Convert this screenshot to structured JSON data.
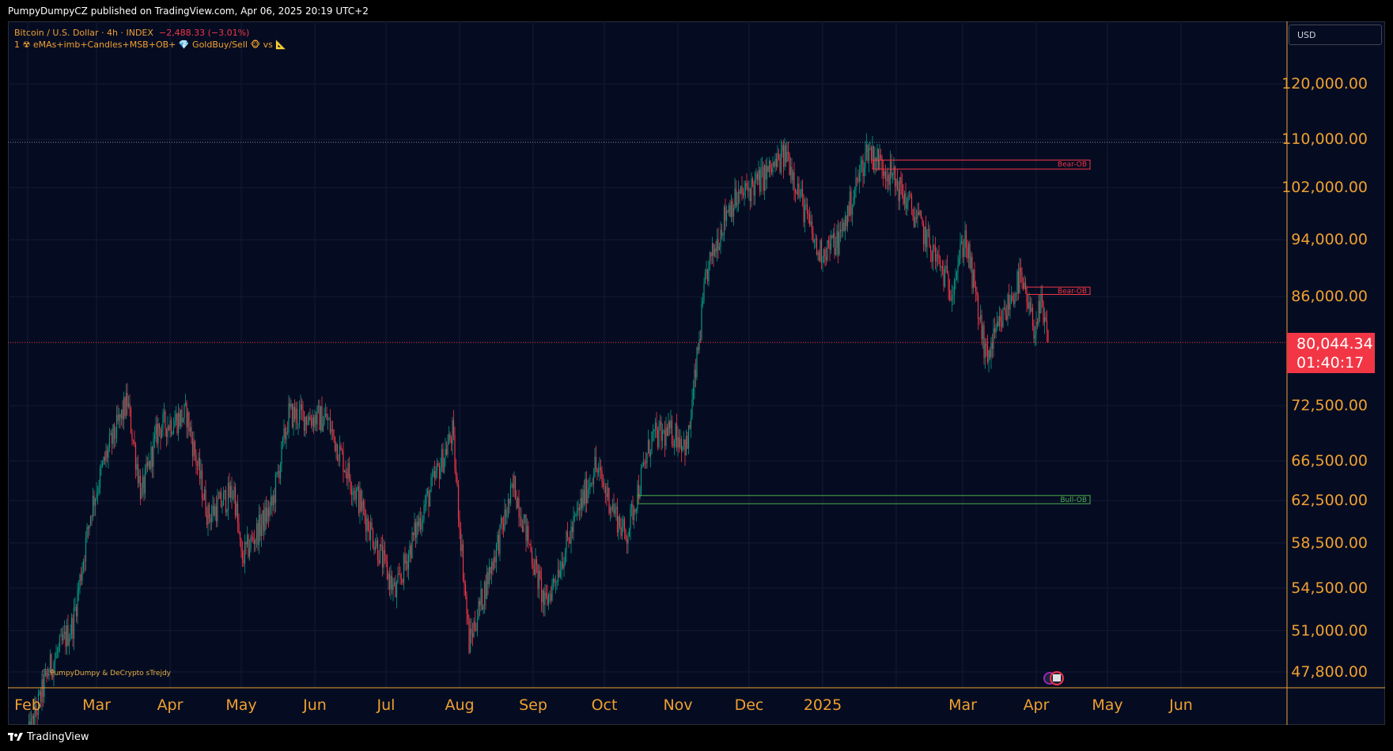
{
  "header": {
    "publish_text": "PumpyDumpyCZ published on TradingView.com, Apr 06, 2025 20:19 UTC+2"
  },
  "legend": {
    "symbol": "Bitcoin / U.S. Dollar · 4h · INDEX",
    "change": "−2,488.33 (−3.01%)",
    "indicator": "1 ☢ eMAs+imb+Candles+MSB+OB+ 💎 GoldBuy/Sell 🐵 vs 📐"
  },
  "currency_button": "USD",
  "price_axis": {
    "labels": [
      "120,000.00",
      "110,000.00",
      "102,000.00",
      "94,000.00",
      "86,000.00",
      "72,500.00",
      "66,500.00",
      "62,500.00",
      "58,500.00",
      "54,500.00",
      "51,000.00",
      "47,800.00"
    ]
  },
  "current_price": {
    "price": "80,044.34",
    "countdown": "01:40:17"
  },
  "time_axis": {
    "labels": [
      "Feb",
      "Mar",
      "Apr",
      "May",
      "Jun",
      "Jul",
      "Aug",
      "Sep",
      "Oct",
      "Nov",
      "Dec",
      "2025",
      "Mar",
      "Apr",
      "May",
      "Jun"
    ]
  },
  "order_blocks": [
    {
      "label": "Bear-OB",
      "top": 106500,
      "bottom": 105000,
      "type": "bear"
    },
    {
      "label": "Bear-OB",
      "top": 87300,
      "bottom": 86300,
      "type": "bear"
    },
    {
      "label": "Bull-OB",
      "top": 63000,
      "bottom": 62200,
      "type": "bull"
    }
  ],
  "watermark": "©️PumpyDumpy & DeCrypto sTrejdy",
  "footer": {
    "brand": "TradingView"
  },
  "colors": {
    "up": "#089981",
    "down": "#f23645",
    "axis_text": "#f0a030",
    "background": "#050c22"
  },
  "chart_data": {
    "type": "candlestick",
    "title": "Bitcoin / U.S. Dollar · 4h · INDEX",
    "scale": "log",
    "x_range": [
      "Feb 2024",
      "Jun 2025"
    ],
    "ylim": [
      46500,
      130000
    ],
    "last_price": 80044.34,
    "high_line": 109500,
    "approx_path": [
      {
        "t": "2024-02-01",
        "p": 43000
      },
      {
        "t": "2024-02-10",
        "p": 48000
      },
      {
        "t": "2024-02-20",
        "p": 51500
      },
      {
        "t": "2024-02-28",
        "p": 62000
      },
      {
        "t": "2024-03-05",
        "p": 67000
      },
      {
        "t": "2024-03-14",
        "p": 73000
      },
      {
        "t": "2024-03-20",
        "p": 63000
      },
      {
        "t": "2024-03-27",
        "p": 70000
      },
      {
        "t": "2024-04-08",
        "p": 71500
      },
      {
        "t": "2024-04-17",
        "p": 61000
      },
      {
        "t": "2024-04-28",
        "p": 63500
      },
      {
        "t": "2024-05-01",
        "p": 57000
      },
      {
        "t": "2024-05-14",
        "p": 62000
      },
      {
        "t": "2024-05-21",
        "p": 71500
      },
      {
        "t": "2024-06-06",
        "p": 71000
      },
      {
        "t": "2024-06-24",
        "p": 60000
      },
      {
        "t": "2024-07-05",
        "p": 54000
      },
      {
        "t": "2024-07-14",
        "p": 60000
      },
      {
        "t": "2024-07-29",
        "p": 69500
      },
      {
        "t": "2024-08-05",
        "p": 50000
      },
      {
        "t": "2024-08-24",
        "p": 64000
      },
      {
        "t": "2024-09-06",
        "p": 53000
      },
      {
        "t": "2024-09-27",
        "p": 66000
      },
      {
        "t": "2024-10-10",
        "p": 59000
      },
      {
        "t": "2024-10-21",
        "p": 69000
      },
      {
        "t": "2024-10-31",
        "p": 69500
      },
      {
        "t": "2024-11-05",
        "p": 68000
      },
      {
        "t": "2024-11-13",
        "p": 89000
      },
      {
        "t": "2024-11-22",
        "p": 99000
      },
      {
        "t": "2024-12-05",
        "p": 103000
      },
      {
        "t": "2024-12-17",
        "p": 107500
      },
      {
        "t": "2024-12-30",
        "p": 92000
      },
      {
        "t": "2025-01-08",
        "p": 94000
      },
      {
        "t": "2025-01-20",
        "p": 108500
      },
      {
        "t": "2025-01-30",
        "p": 104000
      },
      {
        "t": "2025-02-10",
        "p": 97000
      },
      {
        "t": "2025-02-24",
        "p": 87000
      },
      {
        "t": "2025-03-02",
        "p": 94500
      },
      {
        "t": "2025-03-11",
        "p": 78000
      },
      {
        "t": "2025-03-19",
        "p": 84000
      },
      {
        "t": "2025-03-25",
        "p": 88500
      },
      {
        "t": "2025-03-31",
        "p": 82000
      },
      {
        "t": "2025-04-03",
        "p": 84500
      },
      {
        "t": "2025-04-06",
        "p": 80044
      }
    ]
  }
}
